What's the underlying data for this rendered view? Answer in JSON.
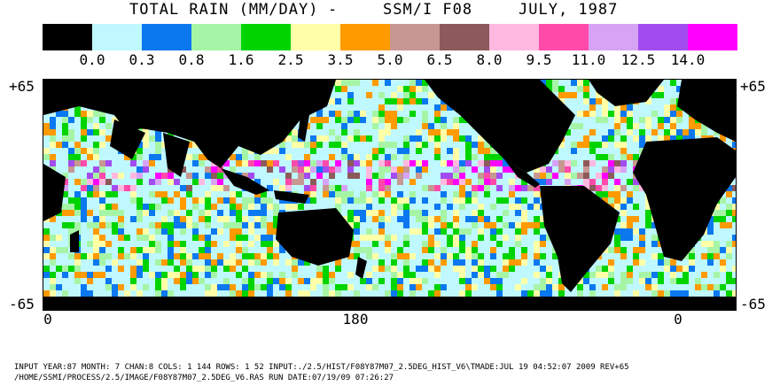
{
  "title": {
    "field": "TOTAL RAIN (MM/DAY)",
    "dash": "-",
    "sensor": "SSM/I F08",
    "period": "JULY, 1987"
  },
  "legend": {
    "labels": [
      "0.0",
      "0.3",
      "0.8",
      "1.6",
      "2.5",
      "3.5",
      "5.0",
      "6.5",
      "8.0",
      "9.5",
      "11.0",
      "12.5",
      "14.0"
    ],
    "colors": [
      "#000000",
      "#bff8ff",
      "#0b78f0",
      "#a6f5a6",
      "#00d400",
      "#ffffa8",
      "#ff9a00",
      "#c79792",
      "#8c5a5a",
      "#ffb9e0",
      "#ff4aaa",
      "#d7a3f5",
      "#a24cf0",
      "#ff00ff"
    ]
  },
  "axes": {
    "lat_top_left": "+65",
    "lat_top_right": "+65",
    "lat_bottom_left": "-65",
    "lat_bottom_right": "-65",
    "lon_labels": [
      "0",
      "180",
      "0"
    ]
  },
  "footer": {
    "line1": "INPUT YEAR:87 MONTH: 7 CHAN:8 COLS:   1 144 ROWS:  1 52 INPUT:./2.5/HIST/F08Y87M07_2.5DEG_HIST_V6\\TMADE:JUL 19 04:52:07 2009 REV+65",
    "line2": "/HOME/SSMI/PROCESS/2.5/IMAGE/F08Y87M07_2.5DEG_V6.RAS  RUN DATE:07/19/09 07:26:27"
  }
}
